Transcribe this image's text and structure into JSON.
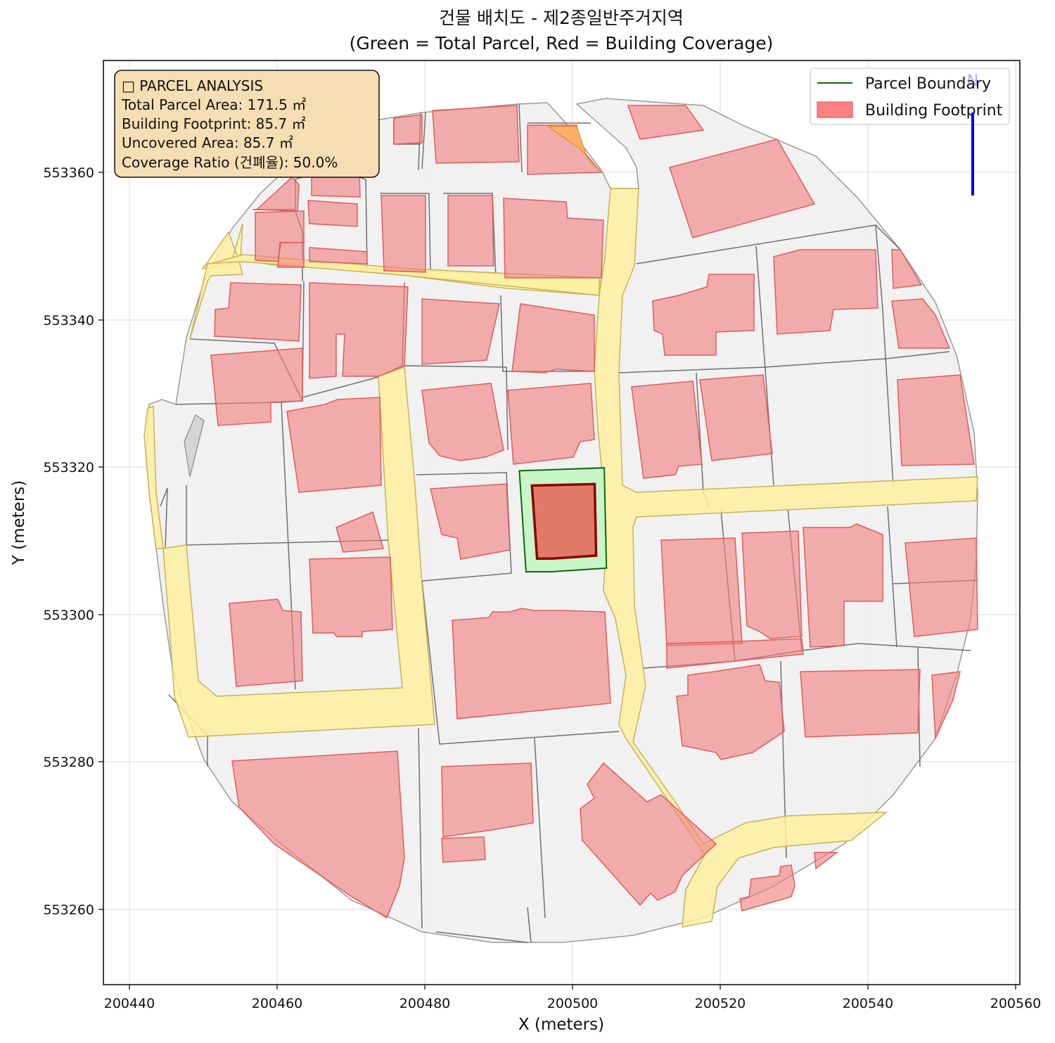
{
  "title": {
    "line1": "건물 배치도 - 제2종일반주거지역",
    "line2": "(Green = Total Parcel, Red = Building Coverage)"
  },
  "axes": {
    "xlabel": "X (meters)",
    "ylabel": "Y (meters)",
    "xticks": [
      "200440",
      "200460",
      "200480",
      "200500",
      "200520",
      "200540",
      "200560"
    ],
    "yticks": [
      "553260",
      "553280",
      "553300",
      "553320",
      "553340",
      "553360"
    ],
    "xlim": [
      200436.5,
      200560.5
    ],
    "ylim": [
      553248.5,
      553374.5
    ],
    "grid": true
  },
  "info_box": {
    "heading": "□ PARCEL ANALYSIS",
    "total_area": "Total Parcel Area: 171.5 ㎡",
    "footprint": "Building Footprint: 85.7 ㎡",
    "uncovered": "Uncovered Area: 85.7 ㎡",
    "ratio": "Coverage Ratio (건폐율): 50.0%"
  },
  "legend": {
    "parcel": "Parcel Boundary",
    "building": "Building Footprint",
    "placement": "top-right"
  },
  "north_arrow_label": "N",
  "colors": {
    "parcel_line": "#0a6b0a",
    "parcel_fill": "#c8f5c8",
    "building_fill": "#f08080",
    "target_building": "#e07a66",
    "target_outline": "#8b0000",
    "road": "#fff0a8",
    "context_fill": "#efefef",
    "info_bg": "#f5deb3",
    "north_arrow": "#0000ee"
  },
  "chart_data": {
    "type": "map",
    "target_parcel": {
      "area_m2": 171.5,
      "polygon": [
        [
          200492.8,
          553319.5
        ],
        [
          200504.3,
          553319.9
        ],
        [
          200504.6,
          553306.3
        ],
        [
          200497.1,
          553305.8
        ],
        [
          200493.7,
          553305.8
        ]
      ]
    },
    "target_building": {
      "footprint_m2": 85.7,
      "coverage_ratio_pct": 50.0,
      "polygon": [
        [
          200494.5,
          553317.5
        ],
        [
          200503.0,
          553317.7
        ],
        [
          200503.2,
          553308.0
        ],
        [
          200497.2,
          553307.6
        ],
        [
          200495.2,
          553307.6
        ]
      ]
    }
  }
}
